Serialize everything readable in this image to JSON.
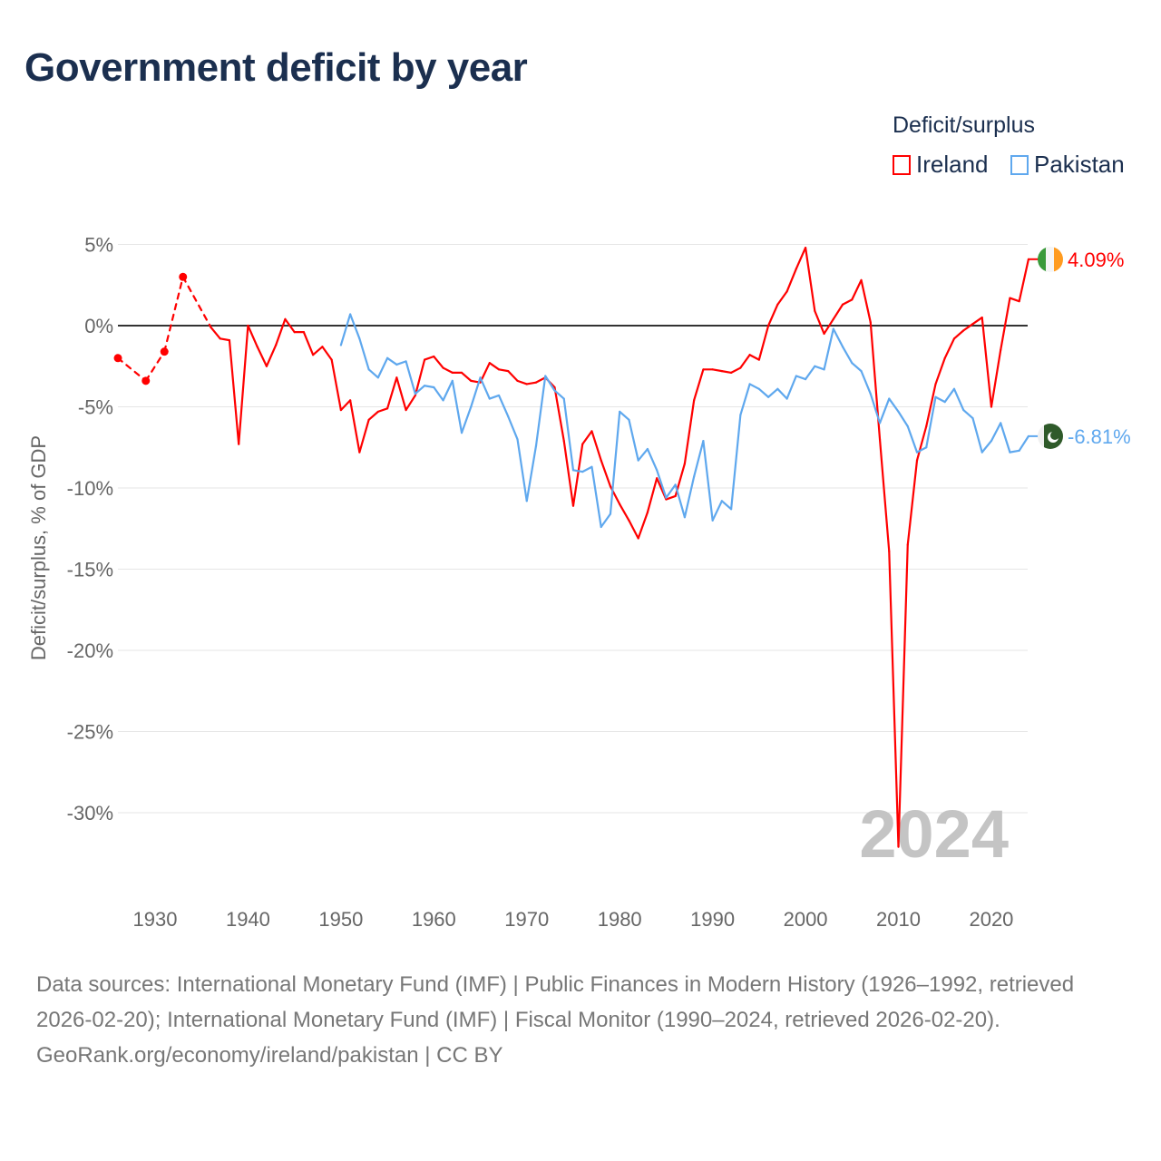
{
  "title": "Government deficit by year",
  "legend": {
    "title": "Deficit/surplus",
    "items": [
      {
        "name": "Ireland",
        "color": "#ff0000"
      },
      {
        "name": "Pakistan",
        "color": "#5fa8ee"
      }
    ]
  },
  "chart_data": {
    "type": "line",
    "title": "Government deficit by year",
    "ylabel": "Deficit/surplus, % of GDP",
    "xlabel": "",
    "xlim": [
      1926,
      2024
    ],
    "ylim": [
      -33,
      6
    ],
    "yticks": [
      5,
      0,
      -5,
      -10,
      -15,
      -20,
      -25,
      -30
    ],
    "ytick_labels": [
      "5%",
      "0%",
      "-5%",
      "-10%",
      "-15%",
      "-20%",
      "-25%",
      "-30%"
    ],
    "xticks": [
      1930,
      1940,
      1950,
      1960,
      1970,
      1980,
      1990,
      2000,
      2010,
      2020
    ],
    "xtick_labels": [
      "1930",
      "1940",
      "1950",
      "1960",
      "1970",
      "1980",
      "1990",
      "2000",
      "2010",
      "2020"
    ],
    "year_label": "2024",
    "series": [
      {
        "name": "Ireland",
        "color": "#ff0000",
        "end_label": "4.09%",
        "x": [
          1926,
          1929,
          1931,
          1933,
          1936,
          1937,
          1938,
          1939,
          1940,
          1941,
          1942,
          1943,
          1944,
          1945,
          1946,
          1947,
          1948,
          1949,
          1950,
          1951,
          1952,
          1953,
          1954,
          1955,
          1956,
          1957,
          1958,
          1959,
          1960,
          1961,
          1962,
          1963,
          1964,
          1965,
          1966,
          1967,
          1968,
          1969,
          1970,
          1971,
          1972,
          1973,
          1974,
          1975,
          1976,
          1977,
          1978,
          1979,
          1980,
          1981,
          1982,
          1983,
          1984,
          1985,
          1986,
          1987,
          1988,
          1989,
          1990,
          1991,
          1992,
          1993,
          1994,
          1995,
          1996,
          1997,
          1998,
          1999,
          2000,
          2001,
          2002,
          2003,
          2004,
          2005,
          2006,
          2007,
          2008,
          2009,
          2010,
          2011,
          2012,
          2013,
          2014,
          2015,
          2016,
          2017,
          2018,
          2019,
          2020,
          2021,
          2022,
          2023,
          2024
        ],
        "y": [
          -2.0,
          -3.4,
          -1.6,
          3.0,
          -0.1,
          -0.8,
          -0.9,
          -7.3,
          0.0,
          -1.3,
          -2.5,
          -1.2,
          0.4,
          -0.4,
          -0.4,
          -1.8,
          -1.3,
          -2.1,
          -5.2,
          -4.6,
          -7.8,
          -5.8,
          -5.3,
          -5.1,
          -3.2,
          -5.2,
          -4.3,
          -2.1,
          -1.9,
          -2.6,
          -2.9,
          -2.9,
          -3.4,
          -3.5,
          -2.3,
          -2.7,
          -2.8,
          -3.4,
          -3.6,
          -3.5,
          -3.2,
          -3.8,
          -7.1,
          -11.1,
          -7.3,
          -6.5,
          -8.3,
          -9.9,
          -11.0,
          -12.0,
          -13.1,
          -11.5,
          -9.4,
          -10.7,
          -10.5,
          -8.5,
          -4.6,
          -2.7,
          -2.7,
          -2.8,
          -2.9,
          -2.6,
          -1.8,
          -2.1,
          0.0,
          1.3,
          2.1,
          3.5,
          4.8,
          0.9,
          -0.5,
          0.4,
          1.3,
          1.6,
          2.8,
          0.2,
          -7.0,
          -13.9,
          -32.1,
          -13.5,
          -8.3,
          -6.2,
          -3.6,
          -2.0,
          -0.8,
          -0.3,
          0.1,
          0.5,
          -5.0,
          -1.5,
          1.7,
          1.5,
          4.09
        ]
      },
      {
        "name": "Pakistan",
        "color": "#5fa8ee",
        "end_label": "-6.81%",
        "x": [
          1950,
          1951,
          1952,
          1953,
          1954,
          1955,
          1956,
          1957,
          1958,
          1959,
          1960,
          1961,
          1962,
          1963,
          1964,
          1965,
          1966,
          1967,
          1968,
          1969,
          1970,
          1971,
          1972,
          1973,
          1974,
          1975,
          1976,
          1977,
          1978,
          1979,
          1980,
          1981,
          1982,
          1983,
          1984,
          1985,
          1986,
          1987,
          1988,
          1989,
          1990,
          1991,
          1992,
          1993,
          1994,
          1995,
          1996,
          1997,
          1998,
          1999,
          2000,
          2001,
          2002,
          2003,
          2004,
          2005,
          2006,
          2007,
          2008,
          2009,
          2010,
          2011,
          2012,
          2013,
          2014,
          2015,
          2016,
          2017,
          2018,
          2019,
          2020,
          2021,
          2022,
          2023,
          2024
        ],
        "y": [
          -1.2,
          0.7,
          -0.8,
          -2.7,
          -3.2,
          -2.0,
          -2.4,
          -2.2,
          -4.2,
          -3.7,
          -3.8,
          -4.6,
          -3.4,
          -6.6,
          -5.0,
          -3.2,
          -4.5,
          -4.3,
          -5.6,
          -7.0,
          -10.8,
          -7.4,
          -3.1,
          -4.0,
          -4.5,
          -8.9,
          -9.0,
          -8.7,
          -12.4,
          -11.6,
          -5.3,
          -5.8,
          -8.3,
          -7.6,
          -8.9,
          -10.6,
          -9.8,
          -11.8,
          -9.3,
          -7.1,
          -12.0,
          -10.8,
          -11.3,
          -5.5,
          -3.6,
          -3.9,
          -4.4,
          -3.9,
          -4.5,
          -3.1,
          -3.3,
          -2.5,
          -2.7,
          -0.2,
          -1.3,
          -2.3,
          -2.8,
          -4.2,
          -6.0,
          -4.5,
          -5.3,
          -6.2,
          -7.8,
          -7.5,
          -4.4,
          -4.7,
          -3.9,
          -5.2,
          -5.7,
          -7.8,
          -7.1,
          -6.0,
          -7.8,
          -7.7,
          -6.81
        ]
      }
    ]
  },
  "footer": {
    "sources": "Data sources: International Monetary Fund (IMF) | Public Finances in Modern History (1926–1992, retrieved 2026-02-20); International Monetary Fund (IMF) | Fiscal Monitor (1990–2024, retrieved 2026-02-20).",
    "credit": "GeoRank.org/economy/ireland/pakistan | CC BY"
  }
}
